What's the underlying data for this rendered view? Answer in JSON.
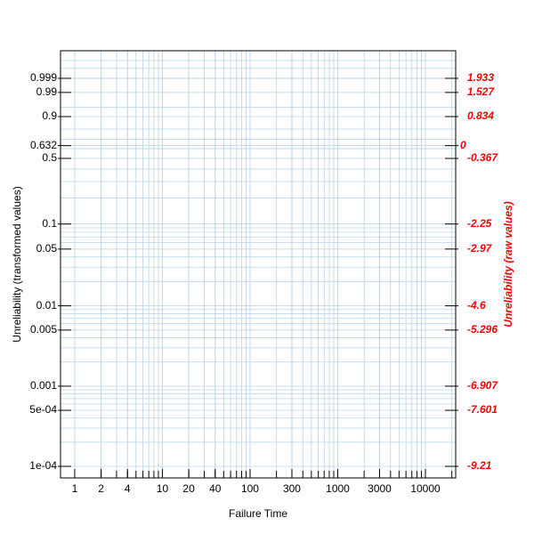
{
  "chart_data": {
    "type": "probability-plot",
    "xlabel": "Failure Time",
    "ylabel": "Unreliability (transformed values)",
    "y2label": "Unreliability (raw values)",
    "xscale": "log",
    "yscale": "weibull",
    "xlim": [
      0.689,
      22130
    ],
    "xticks": [
      1,
      2,
      4,
      10,
      20,
      40,
      100,
      300,
      1000,
      3000,
      10000
    ],
    "xminor": [
      2,
      3,
      4,
      5,
      6,
      7,
      8,
      9,
      20,
      30,
      40,
      50,
      60,
      70,
      80,
      90,
      200,
      300,
      400,
      500,
      600,
      700,
      800,
      900,
      2000,
      3000,
      4000,
      5000,
      6000,
      7000,
      8000,
      9000,
      20000
    ],
    "ylim": [
      7.18e-05,
      0.9999998
    ],
    "yticks": [
      {
        "value": 0.0001,
        "label": "1e-04"
      },
      {
        "value": 0.0005,
        "label": "5e-04"
      },
      0.001,
      0.005,
      0.01,
      0.05,
      0.1,
      0.5,
      0.632,
      0.9,
      0.99,
      0.999
    ],
    "yminor": [
      0.0002,
      0.0003,
      0.0004,
      0.0006,
      0.0007,
      0.0008,
      0.0009,
      0.002,
      0.003,
      0.004,
      0.006,
      0.007,
      0.008,
      0.009,
      0.02,
      0.03,
      0.04,
      0.06,
      0.07,
      0.08,
      0.09,
      0.2,
      0.3,
      0.4,
      0.6,
      0.7,
      0.8,
      0.95,
      0.999,
      0.9999,
      0.99999
    ],
    "y2lim": [
      -9.542,
      2.725
    ],
    "y2ticks": [
      -9.21,
      -7.601,
      -6.907,
      -5.296,
      -4.6,
      -2.97,
      -2.25,
      -0.367,
      0,
      0.834,
      1.527,
      1.933
    ],
    "y2color": "#ff0000",
    "gridcolor": "#b8d4e8",
    "grid": true
  }
}
